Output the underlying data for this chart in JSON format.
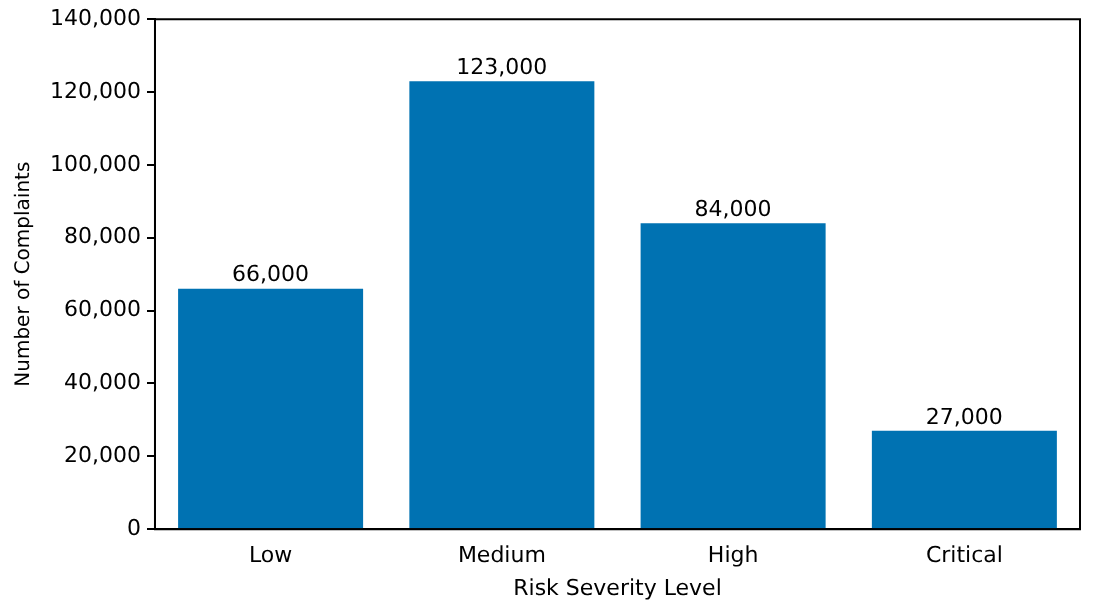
{
  "chart_data": {
    "type": "bar",
    "xlabel": "Risk Severity Level",
    "ylabel": "Number of Complaints",
    "categories": [
      "Low",
      "Medium",
      "High",
      "Critical"
    ],
    "values": [
      66000,
      123000,
      84000,
      27000
    ],
    "color": "#0072b2",
    "value_labels": [
      "66,000",
      "123,000",
      "84,000",
      "27,000"
    ],
    "ylim": [
      0,
      140000
    ],
    "yticks": [
      {
        "value": 0,
        "label": "0"
      },
      {
        "value": 20000,
        "label": "20,000"
      },
      {
        "value": 40000,
        "label": "40,000"
      },
      {
        "value": 60000,
        "label": "60,000"
      },
      {
        "value": 80000,
        "label": "80,000"
      },
      {
        "value": 100000,
        "label": "100,000"
      },
      {
        "value": 120000,
        "label": "120,000"
      },
      {
        "value": 140000,
        "label": "140,000"
      }
    ],
    "grid": false,
    "legend": false
  }
}
